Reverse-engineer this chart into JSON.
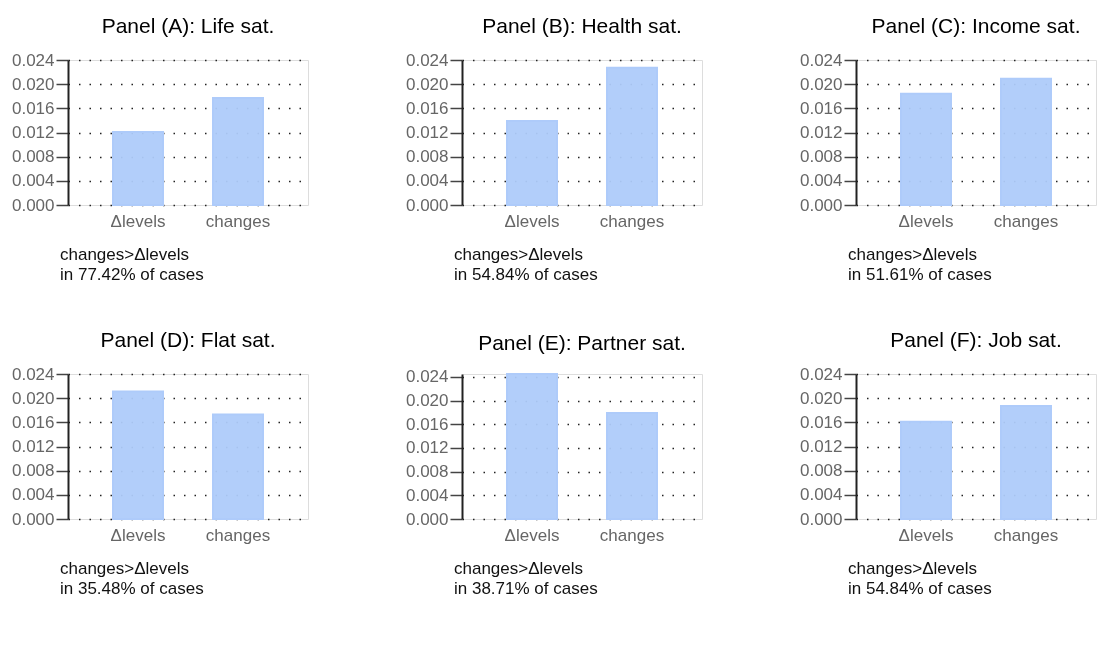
{
  "chart_data": [
    {
      "type": "bar",
      "title": "Panel (A): Life sat.",
      "categories": [
        "Δlevels",
        "changes"
      ],
      "values": [
        0.0121,
        0.0177
      ],
      "color": "#aecbfa",
      "ylim": [
        0,
        0.024
      ],
      "yticks": [
        {
          "value": 0,
          "label": "0.000"
        },
        {
          "value": 0.004,
          "label": "0.004"
        },
        {
          "value": 0.008,
          "label": "0.008"
        },
        {
          "value": 0.012,
          "label": "0.012"
        },
        {
          "value": 0.016,
          "label": "0.016"
        },
        {
          "value": 0.02,
          "label": "0.020"
        },
        {
          "value": 0.024,
          "label": "0.024"
        }
      ],
      "grid": "y",
      "annotations": [
        "changes>Δlevels\nin 77.42% of cases"
      ]
    },
    {
      "type": "bar",
      "title": "Panel (B): Health sat.",
      "categories": [
        "Δlevels",
        "changes"
      ],
      "values": [
        0.0139,
        0.0227
      ],
      "color": "#aecbfa",
      "ylim": [
        0,
        0.024
      ],
      "yticks": [
        {
          "value": 0,
          "label": "0.000"
        },
        {
          "value": 0.004,
          "label": "0.004"
        },
        {
          "value": 0.008,
          "label": "0.008"
        },
        {
          "value": 0.012,
          "label": "0.012"
        },
        {
          "value": 0.016,
          "label": "0.016"
        },
        {
          "value": 0.02,
          "label": "0.020"
        },
        {
          "value": 0.024,
          "label": "0.024"
        }
      ],
      "grid": "y",
      "annotations": [
        "changes>Δlevels\nin 54.84% of cases"
      ]
    },
    {
      "type": "bar",
      "title": "Panel (C): Income sat.",
      "categories": [
        "Δlevels",
        "changes"
      ],
      "values": [
        0.0184,
        0.0209
      ],
      "color": "#aecbfa",
      "ylim": [
        0,
        0.024
      ],
      "yticks": [
        {
          "value": 0,
          "label": "0.000"
        },
        {
          "value": 0.004,
          "label": "0.004"
        },
        {
          "value": 0.008,
          "label": "0.008"
        },
        {
          "value": 0.012,
          "label": "0.012"
        },
        {
          "value": 0.016,
          "label": "0.016"
        },
        {
          "value": 0.02,
          "label": "0.020"
        },
        {
          "value": 0.024,
          "label": "0.024"
        }
      ],
      "grid": "y",
      "annotations": [
        "changes>Δlevels\nin 51.61% of cases"
      ]
    },
    {
      "type": "bar",
      "title": "Panel (D): Flat sat.",
      "categories": [
        "Δlevels",
        "changes"
      ],
      "values": [
        0.0211,
        0.0173
      ],
      "color": "#aecbfa",
      "ylim": [
        0,
        0.024
      ],
      "yticks": [
        {
          "value": 0,
          "label": "0.000"
        },
        {
          "value": 0.004,
          "label": "0.004"
        },
        {
          "value": 0.008,
          "label": "0.008"
        },
        {
          "value": 0.012,
          "label": "0.012"
        },
        {
          "value": 0.016,
          "label": "0.016"
        },
        {
          "value": 0.02,
          "label": "0.020"
        },
        {
          "value": 0.024,
          "label": "0.024"
        }
      ],
      "grid": "y",
      "annotations": [
        "changes>Δlevels\nin 35.48% of cases"
      ]
    },
    {
      "type": "bar",
      "title": "Panel (E): Partner sat.",
      "categories": [
        "Δlevels",
        "changes"
      ],
      "values": [
        0.0245,
        0.0179
      ],
      "color": "#aecbfa",
      "ylim": [
        0,
        0.0245
      ],
      "yticks": [
        {
          "value": 0,
          "label": "0.000"
        },
        {
          "value": 0.004,
          "label": "0.004"
        },
        {
          "value": 0.008,
          "label": "0.008"
        },
        {
          "value": 0.012,
          "label": "0.012"
        },
        {
          "value": 0.016,
          "label": "0.016"
        },
        {
          "value": 0.02,
          "label": "0.020"
        },
        {
          "value": 0.024,
          "label": "0.024"
        }
      ],
      "grid": "y",
      "annotations": [
        "changes>Δlevels\nin 38.71% of cases"
      ]
    },
    {
      "type": "bar",
      "title": "Panel (F): Job sat.",
      "categories": [
        "Δlevels",
        "changes"
      ],
      "values": [
        0.0161,
        0.0187
      ],
      "color": "#aecbfa",
      "ylim": [
        0,
        0.024
      ],
      "yticks": [
        {
          "value": 0,
          "label": "0.000"
        },
        {
          "value": 0.004,
          "label": "0.004"
        },
        {
          "value": 0.008,
          "label": "0.008"
        },
        {
          "value": 0.012,
          "label": "0.012"
        },
        {
          "value": 0.016,
          "label": "0.016"
        },
        {
          "value": 0.02,
          "label": "0.020"
        },
        {
          "value": 0.024,
          "label": "0.024"
        }
      ],
      "grid": "y",
      "annotations": [
        "changes>Δlevels\nin 54.84% of cases"
      ]
    }
  ]
}
